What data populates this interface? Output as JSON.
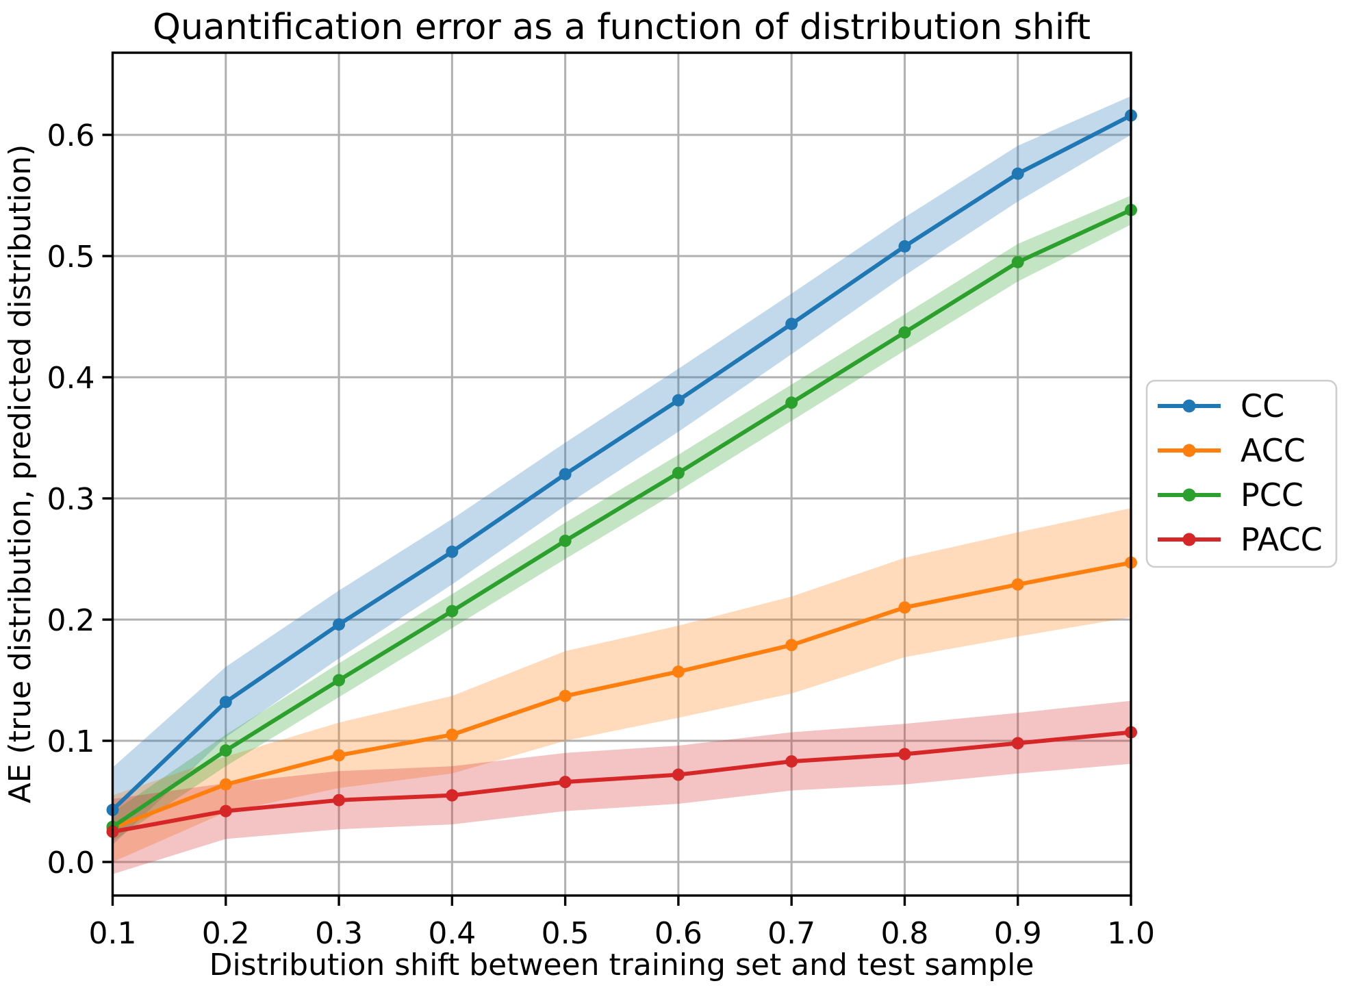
{
  "figure": {
    "title": "Quantification error as a function of distribution shift",
    "xlabel": "Distribution shift between training set and test sample",
    "ylabel": "AE (true distribution, predicted distribution)"
  },
  "chart_data": {
    "type": "line",
    "title": "Quantification error as a function of distribution shift",
    "xlabel": "Distribution shift between training set and test sample",
    "ylabel": "AE (true distribution, predicted distribution)",
    "grid": true,
    "grid_color": "#b0b0b0",
    "background_color": "#ffffff",
    "legend_position": "right-outside",
    "band_alpha": 0.28,
    "x": [
      0.1,
      0.2,
      0.3,
      0.4,
      0.5,
      0.6,
      0.7,
      0.8,
      0.9,
      1.0
    ],
    "x_tick_labels": [
      "0.1",
      "0.2",
      "0.3",
      "0.4",
      "0.5",
      "0.6",
      "0.7",
      "0.8",
      "0.9",
      "1.0"
    ],
    "y_ticks": [
      0.0,
      0.1,
      0.2,
      0.3,
      0.4,
      0.5,
      0.6
    ],
    "y_tick_labels": [
      "0.0",
      "0.1",
      "0.2",
      "0.3",
      "0.4",
      "0.5",
      "0.6"
    ],
    "xlim": [
      0.1,
      1.0
    ],
    "ylim": [
      -0.028,
      0.668
    ],
    "series": [
      {
        "name": "CC",
        "color": "#1f77b4",
        "values": [
          0.043,
          0.132,
          0.196,
          0.256,
          0.32,
          0.381,
          0.444,
          0.508,
          0.568,
          0.616
        ],
        "band_lo": [
          0.014,
          0.103,
          0.168,
          0.229,
          0.294,
          0.355,
          0.419,
          0.484,
          0.545,
          0.6
        ],
        "band_hi": [
          0.078,
          0.161,
          0.224,
          0.283,
          0.346,
          0.407,
          0.469,
          0.532,
          0.591,
          0.632
        ]
      },
      {
        "name": "ACC",
        "color": "#ff7f0e",
        "values": [
          0.028,
          0.064,
          0.088,
          0.105,
          0.137,
          0.157,
          0.179,
          0.21,
          0.229,
          0.247
        ],
        "band_lo": [
          0.0,
          0.041,
          0.061,
          0.073,
          0.1,
          0.119,
          0.139,
          0.169,
          0.186,
          0.202
        ],
        "band_hi": [
          0.055,
          0.087,
          0.115,
          0.137,
          0.174,
          0.195,
          0.219,
          0.251,
          0.272,
          0.292
        ]
      },
      {
        "name": "PCC",
        "color": "#2ca02c",
        "values": [
          0.029,
          0.092,
          0.15,
          0.207,
          0.265,
          0.321,
          0.379,
          0.437,
          0.495,
          0.538
        ],
        "band_lo": [
          0.017,
          0.079,
          0.136,
          0.193,
          0.25,
          0.306,
          0.364,
          0.422,
          0.479,
          0.526
        ],
        "band_hi": [
          0.041,
          0.105,
          0.164,
          0.221,
          0.28,
          0.336,
          0.394,
          0.452,
          0.51,
          0.55
        ]
      },
      {
        "name": "PACC",
        "color": "#d62728",
        "values": [
          0.025,
          0.042,
          0.051,
          0.055,
          0.066,
          0.072,
          0.083,
          0.089,
          0.098,
          0.107
        ],
        "band_lo": [
          -0.01,
          0.019,
          0.027,
          0.031,
          0.042,
          0.048,
          0.059,
          0.064,
          0.073,
          0.081
        ],
        "band_hi": [
          0.052,
          0.065,
          0.075,
          0.079,
          0.09,
          0.096,
          0.107,
          0.114,
          0.123,
          0.133
        ]
      }
    ]
  }
}
